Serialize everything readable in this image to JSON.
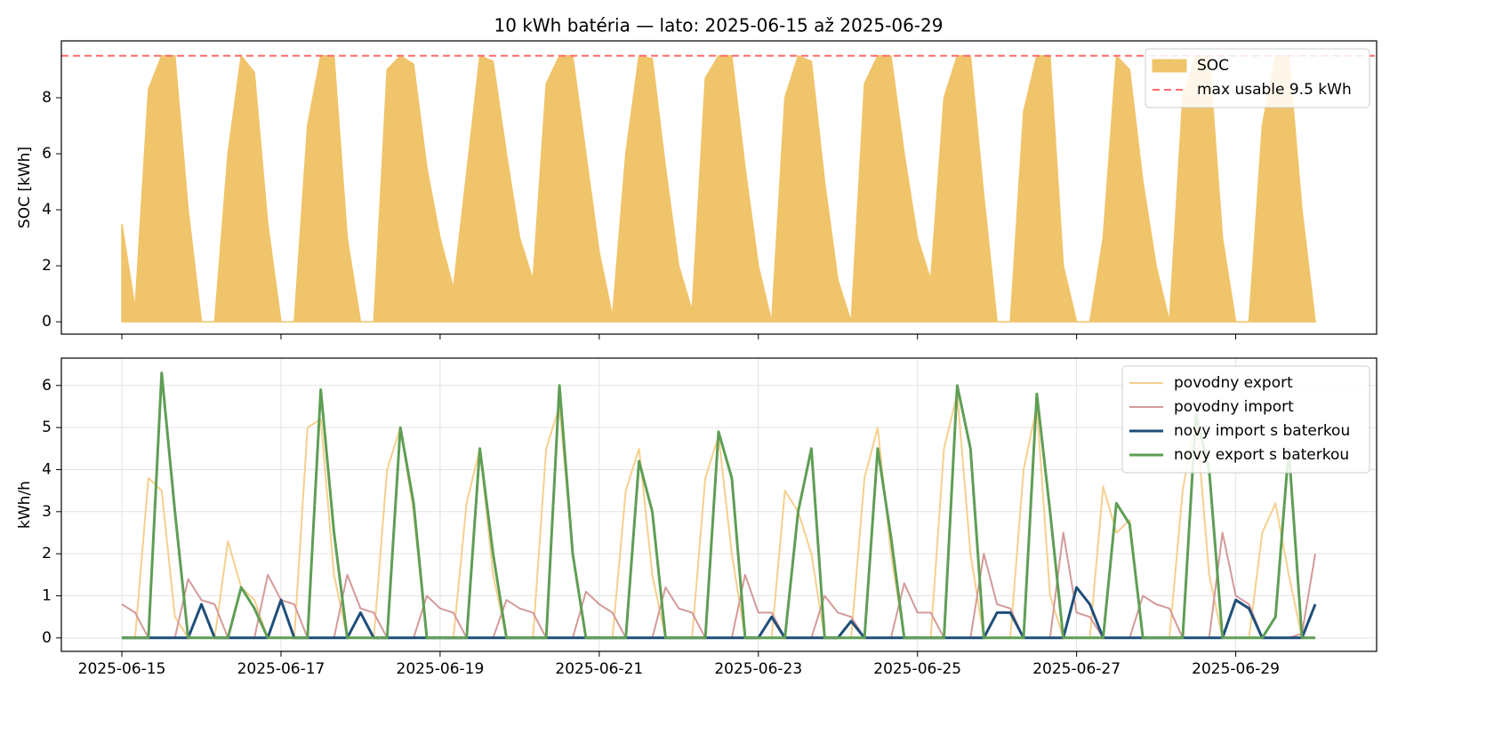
{
  "chart_data": [
    {
      "type": "area",
      "title": "10 kWh batéria — lato: 2025-06-15 až 2025-06-29",
      "ylabel": "SOC [kWh]",
      "x": [
        "2025-06-15T00:00",
        "2025-06-15T04:00",
        "2025-06-15T08:00",
        "2025-06-15T12:00",
        "2025-06-15T16:00",
        "2025-06-15T20:00",
        "2025-06-16T00:00",
        "2025-06-16T04:00",
        "2025-06-16T08:00",
        "2025-06-16T12:00",
        "2025-06-16T16:00",
        "2025-06-16T20:00",
        "2025-06-17T00:00",
        "2025-06-17T04:00",
        "2025-06-17T08:00",
        "2025-06-17T12:00",
        "2025-06-17T16:00",
        "2025-06-17T20:00",
        "2025-06-18T00:00",
        "2025-06-18T04:00",
        "2025-06-18T08:00",
        "2025-06-18T12:00",
        "2025-06-18T16:00",
        "2025-06-18T20:00",
        "2025-06-19T00:00",
        "2025-06-19T04:00",
        "2025-06-19T08:00",
        "2025-06-19T12:00",
        "2025-06-19T16:00",
        "2025-06-19T20:00",
        "2025-06-20T00:00",
        "2025-06-20T04:00",
        "2025-06-20T08:00",
        "2025-06-20T12:00",
        "2025-06-20T16:00",
        "2025-06-20T20:00",
        "2025-06-21T00:00",
        "2025-06-21T04:00",
        "2025-06-21T08:00",
        "2025-06-21T12:00",
        "2025-06-21T16:00",
        "2025-06-21T20:00",
        "2025-06-22T00:00",
        "2025-06-22T04:00",
        "2025-06-22T08:00",
        "2025-06-22T12:00",
        "2025-06-22T16:00",
        "2025-06-22T20:00",
        "2025-06-23T00:00",
        "2025-06-23T04:00",
        "2025-06-23T08:00",
        "2025-06-23T12:00",
        "2025-06-23T16:00",
        "2025-06-23T20:00",
        "2025-06-24T00:00",
        "2025-06-24T04:00",
        "2025-06-24T08:00",
        "2025-06-24T12:00",
        "2025-06-24T16:00",
        "2025-06-24T20:00",
        "2025-06-25T00:00",
        "2025-06-25T04:00",
        "2025-06-25T08:00",
        "2025-06-25T12:00",
        "2025-06-25T16:00",
        "2025-06-25T20:00",
        "2025-06-26T00:00",
        "2025-06-26T04:00",
        "2025-06-26T08:00",
        "2025-06-26T12:00",
        "2025-06-26T16:00",
        "2025-06-26T20:00",
        "2025-06-27T00:00",
        "2025-06-27T04:00",
        "2025-06-27T08:00",
        "2025-06-27T12:00",
        "2025-06-27T16:00",
        "2025-06-27T20:00",
        "2025-06-28T00:00",
        "2025-06-28T04:00",
        "2025-06-28T08:00",
        "2025-06-28T12:00",
        "2025-06-28T16:00",
        "2025-06-28T20:00",
        "2025-06-29T00:00",
        "2025-06-29T04:00",
        "2025-06-29T08:00",
        "2025-06-29T12:00",
        "2025-06-29T16:00",
        "2025-06-29T20:00",
        "2025-06-30T00:00"
      ],
      "xlim": [
        "2025-06-14T05:45",
        "2025-06-30T18:30"
      ],
      "xticks": [
        "2025-06-15",
        "2025-06-17",
        "2025-06-19",
        "2025-06-21",
        "2025-06-23",
        "2025-06-25",
        "2025-06-27",
        "2025-06-29"
      ],
      "show_xtick_labels": false,
      "ylim": [
        -0.44,
        10.03
      ],
      "yticks": [
        0,
        2,
        4,
        6,
        8
      ],
      "grid": false,
      "legend": "upper right",
      "hline": {
        "name": "max usable 9.5 kWh",
        "value": 9.5,
        "color": "#ff6b6b"
      },
      "series": [
        {
          "name": "SOC",
          "color": "#f0c46a",
          "values": [
            3.5,
            0.5,
            8.3,
            9.5,
            9.5,
            4,
            0,
            0,
            6,
            9.5,
            8.9,
            3.5,
            0,
            0,
            7,
            9.5,
            9.5,
            3,
            0,
            0,
            9,
            9.5,
            9.2,
            5.5,
            3,
            1.2,
            5.3,
            9.5,
            9.3,
            6,
            3,
            1.5,
            8.5,
            9.5,
            9.5,
            6,
            2.5,
            0.2,
            6,
            9.5,
            9.4,
            5.5,
            2,
            0.4,
            8.7,
            9.5,
            9.5,
            5.5,
            2,
            0,
            8,
            9.5,
            9.3,
            5,
            1.5,
            0,
            8.5,
            9.5,
            9.5,
            6,
            3,
            1.5,
            8,
            9.5,
            9.5,
            4.5,
            0,
            0,
            7.5,
            9.5,
            9.5,
            2,
            0,
            0,
            3,
            9.5,
            9,
            5,
            2,
            0,
            8,
            9.5,
            9.5,
            3,
            0,
            0,
            7,
            9.5,
            9.5,
            4,
            0
          ]
        }
      ]
    },
    {
      "type": "line",
      "ylabel": "kWh/h",
      "x": [
        "2025-06-15T00:00",
        "2025-06-15T04:00",
        "2025-06-15T08:00",
        "2025-06-15T12:00",
        "2025-06-15T16:00",
        "2025-06-15T20:00",
        "2025-06-16T00:00",
        "2025-06-16T04:00",
        "2025-06-16T08:00",
        "2025-06-16T12:00",
        "2025-06-16T16:00",
        "2025-06-16T20:00",
        "2025-06-17T00:00",
        "2025-06-17T04:00",
        "2025-06-17T08:00",
        "2025-06-17T12:00",
        "2025-06-17T16:00",
        "2025-06-17T20:00",
        "2025-06-18T00:00",
        "2025-06-18T04:00",
        "2025-06-18T08:00",
        "2025-06-18T12:00",
        "2025-06-18T16:00",
        "2025-06-18T20:00",
        "2025-06-19T00:00",
        "2025-06-19T04:00",
        "2025-06-19T08:00",
        "2025-06-19T12:00",
        "2025-06-19T16:00",
        "2025-06-19T20:00",
        "2025-06-20T00:00",
        "2025-06-20T04:00",
        "2025-06-20T08:00",
        "2025-06-20T12:00",
        "2025-06-20T16:00",
        "2025-06-20T20:00",
        "2025-06-21T00:00",
        "2025-06-21T04:00",
        "2025-06-21T08:00",
        "2025-06-21T12:00",
        "2025-06-21T16:00",
        "2025-06-21T20:00",
        "2025-06-22T00:00",
        "2025-06-22T04:00",
        "2025-06-22T08:00",
        "2025-06-22T12:00",
        "2025-06-22T16:00",
        "2025-06-22T20:00",
        "2025-06-23T00:00",
        "2025-06-23T04:00",
        "2025-06-23T08:00",
        "2025-06-23T12:00",
        "2025-06-23T16:00",
        "2025-06-23T20:00",
        "2025-06-24T00:00",
        "2025-06-24T04:00",
        "2025-06-24T08:00",
        "2025-06-24T12:00",
        "2025-06-24T16:00",
        "2025-06-24T20:00",
        "2025-06-25T00:00",
        "2025-06-25T04:00",
        "2025-06-25T08:00",
        "2025-06-25T12:00",
        "2025-06-25T16:00",
        "2025-06-25T20:00",
        "2025-06-26T00:00",
        "2025-06-26T04:00",
        "2025-06-26T08:00",
        "2025-06-26T12:00",
        "2025-06-26T16:00",
        "2025-06-26T20:00",
        "2025-06-27T00:00",
        "2025-06-27T04:00",
        "2025-06-27T08:00",
        "2025-06-27T12:00",
        "2025-06-27T16:00",
        "2025-06-27T20:00",
        "2025-06-28T00:00",
        "2025-06-28T04:00",
        "2025-06-28T08:00",
        "2025-06-28T12:00",
        "2025-06-28T16:00",
        "2025-06-28T20:00",
        "2025-06-29T00:00",
        "2025-06-29T04:00",
        "2025-06-29T08:00",
        "2025-06-29T12:00",
        "2025-06-29T16:00",
        "2025-06-29T20:00",
        "2025-06-30T00:00"
      ],
      "xlim": [
        "2025-06-14T05:45",
        "2025-06-30T18:30"
      ],
      "xticks": [
        "2025-06-15",
        "2025-06-17",
        "2025-06-19",
        "2025-06-21",
        "2025-06-23",
        "2025-06-25",
        "2025-06-27",
        "2025-06-29"
      ],
      "show_xtick_labels": true,
      "ylim": [
        -0.32,
        6.65
      ],
      "yticks": [
        0,
        1,
        2,
        3,
        4,
        5,
        6
      ],
      "grid": true,
      "legend": "upper right",
      "series": [
        {
          "name": "povodny export",
          "color": "#f5d08f",
          "values": [
            0,
            0,
            3.8,
            3.5,
            0.5,
            0,
            0,
            0,
            2.3,
            1.2,
            0.9,
            0,
            0,
            0,
            5,
            5.2,
            1.5,
            0,
            0,
            0,
            4,
            5,
            3,
            0,
            0,
            0,
            3.2,
            4.5,
            1.5,
            0,
            0,
            0,
            4.5,
            5.5,
            2,
            0,
            0,
            0,
            3.5,
            4.5,
            1.5,
            0,
            0,
            0,
            3.8,
            4.8,
            2,
            0,
            0,
            0,
            3.5,
            3,
            2,
            0,
            0,
            0,
            3.8,
            5,
            2,
            0,
            0,
            0,
            4.5,
            5.8,
            2,
            0,
            0,
            0,
            4,
            5.5,
            1,
            0,
            0,
            0,
            3.6,
            2.5,
            2.8,
            0,
            0,
            0,
            3.5,
            5.3,
            1.5,
            0,
            0,
            0,
            2.5,
            3.2,
            1.5,
            0,
            0
          ]
        },
        {
          "name": "povodny import",
          "color": "#d49a9a",
          "values": [
            0.8,
            0.6,
            0,
            0,
            0,
            1.4,
            0.9,
            0.8,
            0,
            0,
            0,
            1.5,
            0.9,
            0.8,
            0,
            0,
            0,
            1.5,
            0.7,
            0.6,
            0,
            0,
            0,
            1,
            0.7,
            0.6,
            0,
            0,
            0,
            0.9,
            0.7,
            0.6,
            0,
            0,
            0,
            1.1,
            0.8,
            0.6,
            0,
            0,
            0,
            1.2,
            0.7,
            0.6,
            0,
            0,
            0,
            1.5,
            0.6,
            0.6,
            0,
            0,
            0,
            1,
            0.6,
            0.5,
            0,
            0,
            0,
            1.3,
            0.6,
            0.6,
            0,
            0,
            0,
            2,
            0.8,
            0.7,
            0,
            0,
            0,
            2.5,
            0.6,
            0.5,
            0,
            0,
            0,
            1,
            0.8,
            0.7,
            0,
            0,
            0,
            2.5,
            1,
            0.8,
            0,
            0,
            0,
            0.1,
            2
          ]
        },
        {
          "name": "novy import s baterkou",
          "color": "#1f4e79",
          "values": [
            0,
            0,
            0,
            0,
            0,
            0,
            0.8,
            0,
            0,
            0,
            0,
            0,
            0.9,
            0,
            0,
            0,
            0,
            0,
            0.6,
            0,
            0,
            0,
            0,
            0,
            0,
            0,
            0,
            0,
            0,
            0,
            0,
            0,
            0,
            0,
            0,
            0,
            0,
            0,
            0,
            0,
            0,
            0,
            0,
            0,
            0,
            0,
            0,
            0,
            0,
            0.5,
            0,
            0,
            0,
            0,
            0,
            0.4,
            0,
            0,
            0,
            0,
            0,
            0,
            0,
            0,
            0,
            0,
            0.6,
            0.6,
            0,
            0,
            0,
            0,
            1.2,
            0.8,
            0,
            0,
            0,
            0,
            0,
            0,
            0,
            0,
            0,
            0,
            0.9,
            0.7,
            0,
            0,
            0,
            0,
            0.8
          ]
        },
        {
          "name": "novy export s baterkou",
          "color": "#5f9e55",
          "values": [
            0,
            0,
            0,
            6.3,
            3,
            0,
            0,
            0,
            0,
            1.2,
            0.7,
            0,
            0,
            0,
            0,
            5.9,
            2.5,
            0,
            0,
            0,
            0,
            5,
            3.2,
            0,
            0,
            0,
            0,
            4.5,
            2,
            0,
            0,
            0,
            0,
            6,
            2,
            0,
            0,
            0,
            0,
            4.2,
            3,
            0,
            0,
            0,
            0,
            4.9,
            3.8,
            0,
            0,
            0,
            0,
            3,
            4.5,
            0,
            0,
            0,
            0,
            4.5,
            2.4,
            0,
            0,
            0,
            0,
            6,
            4.5,
            0,
            0,
            0,
            0,
            5.8,
            3,
            0,
            0,
            0,
            0,
            3.2,
            2.7,
            0,
            0,
            0,
            0,
            5.3,
            4,
            0,
            0,
            0,
            0,
            0.5,
            4.5,
            0,
            0
          ]
        }
      ]
    }
  ]
}
